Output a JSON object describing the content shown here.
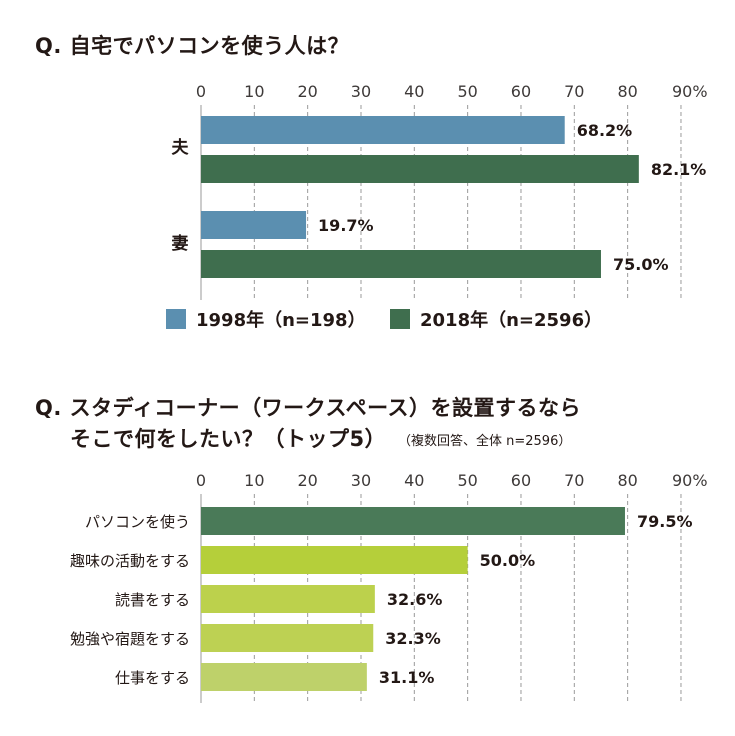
{
  "colors": {
    "blue": "#5b8fb0",
    "darkgreen": "#3f6e4e",
    "greens": [
      "#4a7a58",
      "#b5cf3a",
      "#bcd14c",
      "#bdd153",
      "#bed16a"
    ]
  },
  "chart_data": [
    {
      "type": "bar",
      "orientation": "horizontal",
      "title": "Q. 自宅でパソコンを使う人は？",
      "categories": [
        "夫",
        "妻"
      ],
      "series": [
        {
          "name": "1998年（n=198）",
          "values": [
            68.2,
            19.7
          ],
          "color": "#5b8fb0"
        },
        {
          "name": "2018年（n=2596）",
          "values": [
            82.1,
            75.0
          ],
          "color": "#3f6e4e"
        }
      ],
      "value_labels": [
        [
          "68.2%",
          "19.7%"
        ],
        [
          "82.1%",
          "75.0%"
        ]
      ],
      "xlim": [
        0,
        90
      ],
      "ticks": [
        "0",
        "10",
        "20",
        "30",
        "40",
        "50",
        "60",
        "70",
        "80",
        "90%"
      ],
      "grid": true,
      "legend": "bottom"
    },
    {
      "type": "bar",
      "orientation": "horizontal",
      "title_line1": "Q. スタディコーナー（ワークスペース）を設置するなら",
      "title_line2": "そこで何をしたい？（トップ5）",
      "subtitle": "（複数回答、全体 n=2596）",
      "categories": [
        "パソコンを使う",
        "趣味の活動をする",
        "読書をする",
        "勉強や宿題をする",
        "仕事をする"
      ],
      "values": [
        79.5,
        50.0,
        32.6,
        32.3,
        31.1
      ],
      "value_labels": [
        "79.5%",
        "50.0%",
        "32.6%",
        "32.3%",
        "31.1%"
      ],
      "xlim": [
        0,
        90
      ],
      "ticks": [
        "0",
        "10",
        "20",
        "30",
        "40",
        "50",
        "60",
        "70",
        "80",
        "90%"
      ],
      "grid": true
    }
  ]
}
